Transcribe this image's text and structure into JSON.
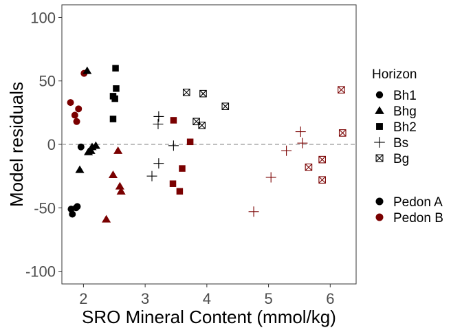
{
  "chart_data": {
    "type": "scatter",
    "xlabel": "SRO Mineral Content (mmol/kg)",
    "ylabel": "Model residuals",
    "xlim": [
      1.65,
      6.42
    ],
    "ylim": [
      -110,
      110
    ],
    "x_ticks": [
      2,
      3,
      4,
      5,
      6
    ],
    "x_tick_labels": [
      "2",
      "3",
      "4",
      "5",
      "6"
    ],
    "y_ticks": [
      -100,
      -50,
      0,
      50,
      100
    ],
    "y_tick_labels": [
      "-100",
      "-50",
      "0",
      "50",
      "100"
    ],
    "reference_line": {
      "y": 0,
      "style": "dashed"
    },
    "grid": false,
    "legend_placement": "right",
    "legend_horizon": {
      "title": "Horizon",
      "entries": [
        {
          "label": "Bh1",
          "shape": "circle"
        },
        {
          "label": "Bhg",
          "shape": "triangle"
        },
        {
          "label": "Bh2",
          "shape": "square"
        },
        {
          "label": "Bs",
          "shape": "plus"
        },
        {
          "label": "Bg",
          "shape": "boxcross"
        }
      ]
    },
    "legend_pedon": {
      "entries": [
        {
          "label": "Pedon A",
          "color": "#000000"
        },
        {
          "label": "Pedon B",
          "color": "#7a0000"
        }
      ]
    },
    "points": [
      {
        "x": 1.8,
        "y": -51,
        "horizon": "Bh1",
        "pedon": "Pedon A"
      },
      {
        "x": 1.82,
        "y": -55,
        "horizon": "Bh1",
        "pedon": "Pedon A"
      },
      {
        "x": 1.88,
        "y": -50,
        "horizon": "Bh1",
        "pedon": "Pedon A"
      },
      {
        "x": 1.9,
        "y": -49,
        "horizon": "Bh1",
        "pedon": "Pedon A"
      },
      {
        "x": 1.96,
        "y": -2,
        "horizon": "Bh1",
        "pedon": "Pedon A"
      },
      {
        "x": 1.79,
        "y": 33,
        "horizon": "Bh1",
        "pedon": "Pedon B"
      },
      {
        "x": 1.86,
        "y": 23,
        "horizon": "Bh1",
        "pedon": "Pedon B"
      },
      {
        "x": 1.89,
        "y": 18,
        "horizon": "Bh1",
        "pedon": "Pedon B"
      },
      {
        "x": 1.92,
        "y": 28,
        "horizon": "Bh1",
        "pedon": "Pedon B"
      },
      {
        "x": 2.01,
        "y": 56,
        "horizon": "Bh1",
        "pedon": "Pedon B"
      },
      {
        "x": 2.06,
        "y": 58,
        "horizon": "Bhg",
        "pedon": "Pedon A"
      },
      {
        "x": 1.94,
        "y": -20,
        "horizon": "Bhg",
        "pedon": "Pedon A"
      },
      {
        "x": 2.08,
        "y": -6,
        "horizon": "Bhg",
        "pedon": "Pedon A"
      },
      {
        "x": 2.12,
        "y": -5,
        "horizon": "Bhg",
        "pedon": "Pedon A"
      },
      {
        "x": 2.14,
        "y": -2,
        "horizon": "Bhg",
        "pedon": "Pedon A"
      },
      {
        "x": 2.2,
        "y": -1,
        "horizon": "Bhg",
        "pedon": "Pedon A"
      },
      {
        "x": 2.37,
        "y": -59,
        "horizon": "Bhg",
        "pedon": "Pedon B"
      },
      {
        "x": 2.48,
        "y": -24,
        "horizon": "Bhg",
        "pedon": "Pedon B"
      },
      {
        "x": 2.56,
        "y": -5,
        "horizon": "Bhg",
        "pedon": "Pedon B"
      },
      {
        "x": 2.59,
        "y": -33,
        "horizon": "Bhg",
        "pedon": "Pedon B"
      },
      {
        "x": 2.61,
        "y": -37,
        "horizon": "Bhg",
        "pedon": "Pedon B"
      },
      {
        "x": 2.52,
        "y": 60,
        "horizon": "Bh2",
        "pedon": "Pedon A"
      },
      {
        "x": 2.53,
        "y": 44,
        "horizon": "Bh2",
        "pedon": "Pedon A"
      },
      {
        "x": 2.48,
        "y": 38,
        "horizon": "Bh2",
        "pedon": "Pedon A"
      },
      {
        "x": 2.51,
        "y": 36,
        "horizon": "Bh2",
        "pedon": "Pedon A"
      },
      {
        "x": 2.48,
        "y": 20,
        "horizon": "Bh2",
        "pedon": "Pedon A"
      },
      {
        "x": 3.46,
        "y": 19,
        "horizon": "Bh2",
        "pedon": "Pedon B"
      },
      {
        "x": 3.73,
        "y": 2,
        "horizon": "Bh2",
        "pedon": "Pedon B"
      },
      {
        "x": 3.6,
        "y": -19,
        "horizon": "Bh2",
        "pedon": "Pedon B"
      },
      {
        "x": 3.45,
        "y": -31,
        "horizon": "Bh2",
        "pedon": "Pedon B"
      },
      {
        "x": 3.56,
        "y": -37,
        "horizon": "Bh2",
        "pedon": "Pedon B"
      },
      {
        "x": 3.22,
        "y": 22,
        "horizon": "Bs",
        "pedon": "Pedon A"
      },
      {
        "x": 3.21,
        "y": 16,
        "horizon": "Bs",
        "pedon": "Pedon A"
      },
      {
        "x": 3.46,
        "y": -1,
        "horizon": "Bs",
        "pedon": "Pedon A"
      },
      {
        "x": 3.22,
        "y": -15,
        "horizon": "Bs",
        "pedon": "Pedon A"
      },
      {
        "x": 3.11,
        "y": -25,
        "horizon": "Bs",
        "pedon": "Pedon A"
      },
      {
        "x": 4.76,
        "y": -53,
        "horizon": "Bs",
        "pedon": "Pedon B"
      },
      {
        "x": 5.04,
        "y": -26,
        "horizon": "Bs",
        "pedon": "Pedon B"
      },
      {
        "x": 5.29,
        "y": -5,
        "horizon": "Bs",
        "pedon": "Pedon B"
      },
      {
        "x": 5.52,
        "y": 10,
        "horizon": "Bs",
        "pedon": "Pedon B"
      },
      {
        "x": 5.55,
        "y": 1,
        "horizon": "Bs",
        "pedon": "Pedon B"
      },
      {
        "x": 3.67,
        "y": 41,
        "horizon": "Bg",
        "pedon": "Pedon A"
      },
      {
        "x": 3.94,
        "y": 40,
        "horizon": "Bg",
        "pedon": "Pedon A"
      },
      {
        "x": 4.3,
        "y": 30,
        "horizon": "Bg",
        "pedon": "Pedon A"
      },
      {
        "x": 3.83,
        "y": 18,
        "horizon": "Bg",
        "pedon": "Pedon A"
      },
      {
        "x": 3.92,
        "y": 15,
        "horizon": "Bg",
        "pedon": "Pedon A"
      },
      {
        "x": 6.18,
        "y": 43,
        "horizon": "Bg",
        "pedon": "Pedon B"
      },
      {
        "x": 6.2,
        "y": 9,
        "horizon": "Bg",
        "pedon": "Pedon B"
      },
      {
        "x": 5.87,
        "y": -12,
        "horizon": "Bg",
        "pedon": "Pedon B"
      },
      {
        "x": 5.65,
        "y": -18,
        "horizon": "Bg",
        "pedon": "Pedon B"
      },
      {
        "x": 5.87,
        "y": -28,
        "horizon": "Bg",
        "pedon": "Pedon B"
      }
    ]
  }
}
